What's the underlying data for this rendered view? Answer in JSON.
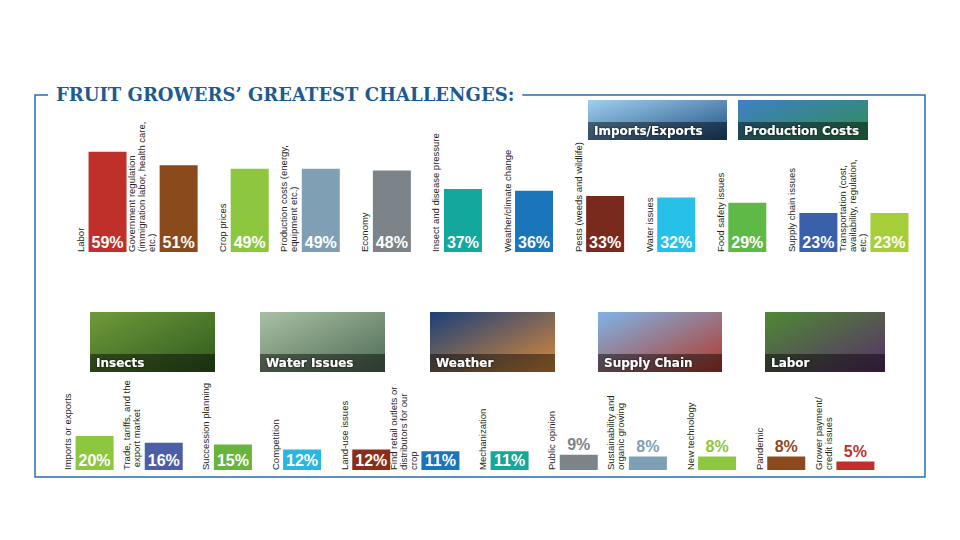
{
  "chart_data": [
    {
      "type": "bar",
      "title": "FRUIT GROWERS’ GREATEST CHALLENGES:",
      "categories": [
        "Labor",
        "Government regulation (immigration labor, health care, etc.)",
        "Crop prices",
        "Production costs (energy, equipment etc.)",
        "Economy",
        "Insect and disease pressure",
        "Weather/climate change",
        "Pests (weeds and wildlife)",
        "Water issues",
        "Food safety issues",
        "Supply chain issues",
        "Transportation (cost, availability, regulation, etc.)"
      ],
      "values": [
        59,
        51,
        49,
        49,
        48,
        37,
        36,
        33,
        32,
        29,
        23,
        23
      ],
      "value_labels": [
        "59%",
        "51%",
        "49%",
        "49%",
        "48%",
        "37%",
        "36%",
        "33%",
        "32%",
        "29%",
        "23%",
        "23%"
      ],
      "colors": [
        "#c0302a",
        "#8b4a1c",
        "#8dc63f",
        "#7f9fb5",
        "#7c8389",
        "#12a89d",
        "#1b75bb",
        "#7a2a1c",
        "#27c0e8",
        "#5fb947",
        "#3a5fab",
        "#a6ce39"
      ],
      "ylim": [
        0,
        60
      ],
      "grid": false,
      "tick_labels": false,
      "data_labels": true,
      "annotations": [
        "Imports/Exports",
        "Production Costs"
      ]
    },
    {
      "type": "bar",
      "categories": [
        "Imports or exports",
        "Trade, tariffs, and the export market",
        "Succession planning",
        "Competition",
        "Land-use issues",
        "Find retail outlets or distributors for our crop",
        "Mechanization",
        "Public opinion",
        "Sustainability and organic growing",
        "New technology",
        "Pandemic",
        "Grower payment/credit issues"
      ],
      "values": [
        20,
        16,
        15,
        12,
        12,
        11,
        11,
        9,
        8,
        8,
        8,
        5
      ],
      "value_labels": [
        "20%",
        "16%",
        "15%",
        "12%",
        "12%",
        "11%",
        "11%",
        "9%",
        "8%",
        "8%",
        "8%",
        "5%"
      ],
      "colors": [
        "#8dc63f",
        "#4b5ea6",
        "#6ab43e",
        "#29b6e0",
        "#8a2e1a",
        "#1b75bb",
        "#14a89a",
        "#7c8389",
        "#7f9fb5",
        "#8dc63f",
        "#8b4a1c",
        "#c0302a"
      ],
      "ylim": [
        0,
        60
      ],
      "grid": false,
      "tick_labels": false,
      "data_labels": true,
      "annotations": [
        "Insects",
        "Water Issues",
        "Weather",
        "Supply Chain",
        "Labor"
      ]
    }
  ]
}
